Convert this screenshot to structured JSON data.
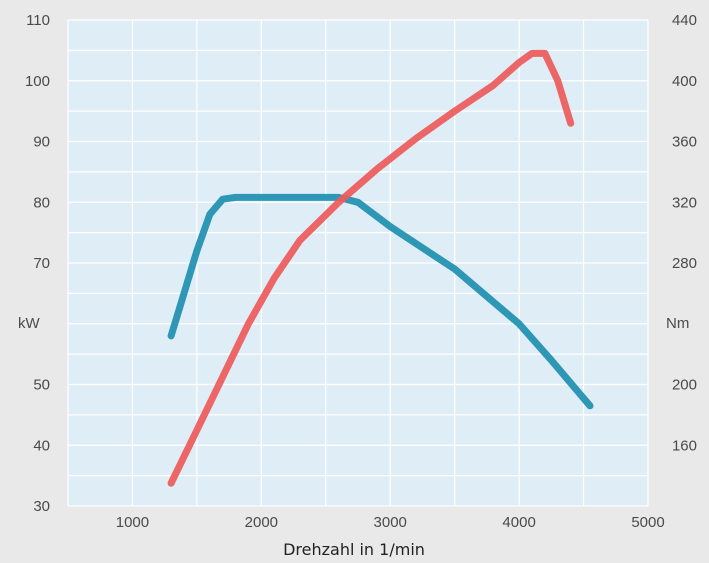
{
  "chart_data": {
    "type": "line",
    "xlabel": "Drehzahl in 1/min",
    "x_ticks": [
      "1000",
      "2000",
      "3000",
      "4000",
      "5000"
    ],
    "xlim": [
      500,
      5000
    ],
    "left_axis": {
      "unit_label": "kW",
      "ticks": [
        "110",
        "100",
        "90",
        "80",
        "70",
        "50",
        "40",
        "30"
      ],
      "ylim": [
        30,
        110
      ]
    },
    "right_axis": {
      "unit_label": "Nm",
      "ticks": [
        "440",
        "400",
        "360",
        "320",
        "280",
        "200",
        "160"
      ],
      "ylim": [
        120,
        440
      ]
    },
    "grid": true,
    "series": [
      {
        "axis": "left",
        "color": "#1e8fb0",
        "points": [
          [
            1300,
            58
          ],
          [
            1400,
            65
          ],
          [
            1500,
            72
          ],
          [
            1600,
            78
          ],
          [
            1700,
            80.5
          ],
          [
            1800,
            80.8
          ],
          [
            2000,
            80.8
          ],
          [
            2300,
            80.8
          ],
          [
            2600,
            80.8
          ],
          [
            2750,
            80
          ],
          [
            3000,
            76
          ],
          [
            3500,
            69
          ],
          [
            4000,
            60
          ],
          [
            4250,
            54
          ],
          [
            4450,
            49
          ],
          [
            4550,
            46.5
          ]
        ]
      },
      {
        "axis": "right",
        "color": "#ee5a5a",
        "points": [
          [
            1300,
            135
          ],
          [
            1500,
            170
          ],
          [
            1700,
            205
          ],
          [
            1900,
            240
          ],
          [
            2100,
            270
          ],
          [
            2300,
            295
          ],
          [
            2600,
            320
          ],
          [
            2900,
            342
          ],
          [
            3200,
            362
          ],
          [
            3500,
            380
          ],
          [
            3800,
            397
          ],
          [
            4000,
            412
          ],
          [
            4100,
            418
          ],
          [
            4200,
            418
          ],
          [
            4300,
            400
          ],
          [
            4400,
            372
          ]
        ]
      }
    ]
  }
}
